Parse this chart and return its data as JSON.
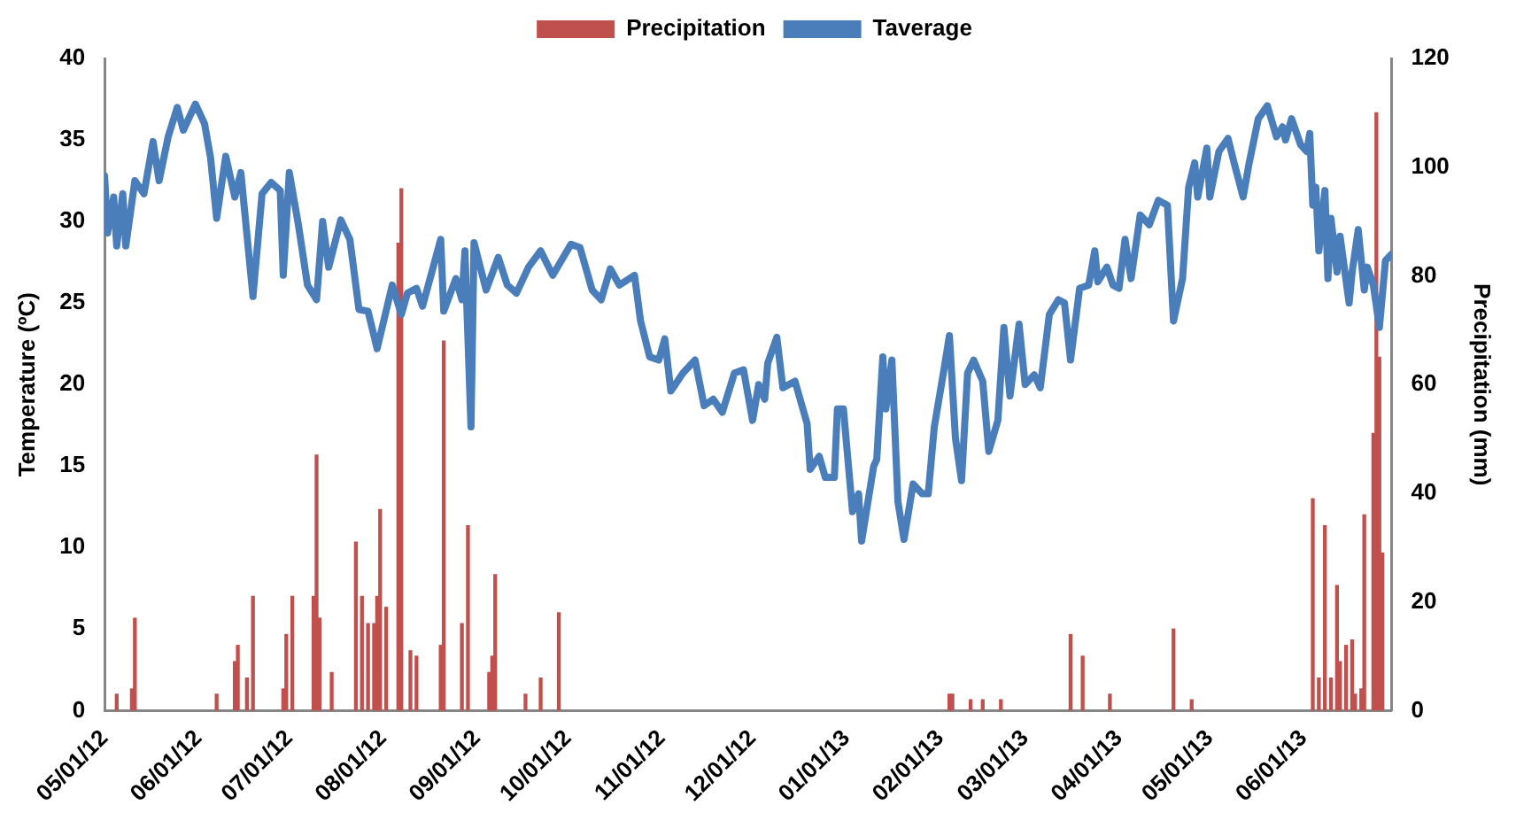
{
  "chart_data": {
    "type": "line",
    "ylabel": "Temperature (ºC)",
    "y2label": "Precipitation (mm)",
    "xlim": [
      "2012-05-01",
      "2013-06-30"
    ],
    "xticks": [
      {
        "value": "2012-05-01",
        "label": "05/01/12"
      },
      {
        "value": "2012-06-01",
        "label": "06/01/12"
      },
      {
        "value": "2012-07-01",
        "label": "07/01/12"
      },
      {
        "value": "2012-08-01",
        "label": "08/01/12"
      },
      {
        "value": "2012-09-01",
        "label": "09/01/12"
      },
      {
        "value": "2012-10-01",
        "label": "10/01/12"
      },
      {
        "value": "2012-11-01",
        "label": "11/01/12"
      },
      {
        "value": "2012-12-01",
        "label": "12/01/12"
      },
      {
        "value": "2013-01-01",
        "label": "01/01/13"
      },
      {
        "value": "2013-02-01",
        "label": "02/01/13"
      },
      {
        "value": "2013-03-01",
        "label": "03/01/13"
      },
      {
        "value": "2013-04-01",
        "label": "04/01/13"
      },
      {
        "value": "2013-05-01",
        "label": "05/01/13"
      },
      {
        "value": "2013-06-01",
        "label": "06/01/13"
      }
    ],
    "ylim": [
      0,
      40
    ],
    "yticks": [
      0,
      5,
      10,
      15,
      20,
      25,
      30,
      35,
      40
    ],
    "y2lim": [
      0,
      120
    ],
    "y2ticks": [
      0,
      20,
      40,
      60,
      80,
      100,
      120
    ],
    "grid": false,
    "legend": "top",
    "series": [
      {
        "name": "Precipitation",
        "type": "bar",
        "axis": "y2",
        "color": "#c0504d",
        "x": [
          "2012-05-05",
          "2012-05-10",
          "2012-05-11",
          "2012-06-07",
          "2012-06-13",
          "2012-06-14",
          "2012-06-17",
          "2012-06-19",
          "2012-06-29",
          "2012-06-30",
          "2012-07-02",
          "2012-07-09",
          "2012-07-10",
          "2012-07-11",
          "2012-07-15",
          "2012-07-23",
          "2012-07-25",
          "2012-07-27",
          "2012-07-29",
          "2012-07-30",
          "2012-07-31",
          "2012-08-02",
          "2012-08-06",
          "2012-08-07",
          "2012-08-10",
          "2012-08-12",
          "2012-08-20",
          "2012-08-21",
          "2012-08-27",
          "2012-08-29",
          "2012-09-05",
          "2012-09-06",
          "2012-09-07",
          "2012-09-17",
          "2012-09-22",
          "2012-09-28",
          "2013-02-04",
          "2013-02-05",
          "2013-02-11",
          "2013-02-15",
          "2013-02-21",
          "2013-03-16",
          "2013-03-20",
          "2013-03-29",
          "2013-04-19",
          "2013-04-25",
          "2013-06-04",
          "2013-06-06",
          "2013-06-08",
          "2013-06-10",
          "2013-06-12",
          "2013-06-13",
          "2013-06-15",
          "2013-06-17",
          "2013-06-18",
          "2013-06-20",
          "2013-06-21",
          "2013-06-24",
          "2013-06-25",
          "2013-06-26",
          "2013-06-27"
        ],
        "values": [
          3,
          4,
          17,
          3,
          9,
          12,
          6,
          21,
          4,
          14,
          21,
          21,
          47,
          17,
          7,
          31,
          21,
          16,
          16,
          21,
          37,
          19,
          86,
          96,
          11,
          10,
          12,
          68,
          16,
          34,
          7,
          10,
          25,
          3,
          6,
          18,
          3,
          3,
          2,
          2,
          2,
          14,
          10,
          3,
          15,
          2,
          39,
          6,
          34,
          6,
          23,
          9,
          12,
          13,
          3,
          4,
          36,
          51,
          110,
          65,
          29
        ]
      },
      {
        "name": "Taverage",
        "axis": "y",
        "color": "#4a7ebb",
        "x": [
          "2012-05-01",
          "2012-05-02",
          "2012-05-04",
          "2012-05-05",
          "2012-05-07",
          "2012-05-08",
          "2012-05-11",
          "2012-05-14",
          "2012-05-17",
          "2012-05-19",
          "2012-05-22",
          "2012-05-25",
          "2012-05-27",
          "2012-05-31",
          "2012-06-03",
          "2012-06-05",
          "2012-06-07",
          "2012-06-10",
          "2012-06-13",
          "2012-06-15",
          "2012-06-19",
          "2012-06-22",
          "2012-06-25",
          "2012-06-28",
          "2012-06-29",
          "2012-07-01",
          "2012-07-04",
          "2012-07-07",
          "2012-07-10",
          "2012-07-12",
          "2012-07-14",
          "2012-07-18",
          "2012-07-21",
          "2012-07-24",
          "2012-07-27",
          "2012-07-30",
          "2012-08-04",
          "2012-08-07",
          "2012-08-09",
          "2012-08-12",
          "2012-08-14",
          "2012-08-20",
          "2012-08-21",
          "2012-08-25",
          "2012-08-27",
          "2012-08-28",
          "2012-08-30",
          "2012-08-31",
          "2012-09-04",
          "2012-09-08",
          "2012-09-11",
          "2012-09-14",
          "2012-09-18",
          "2012-09-22",
          "2012-09-26",
          "2012-10-02",
          "2012-10-05",
          "2012-10-09",
          "2012-10-12",
          "2012-10-15",
          "2012-10-18",
          "2012-10-23",
          "2012-10-25",
          "2012-10-28",
          "2012-10-31",
          "2012-11-02",
          "2012-11-04",
          "2012-11-08",
          "2012-11-12",
          "2012-11-15",
          "2012-11-18",
          "2012-11-21",
          "2012-11-25",
          "2012-11-28",
          "2012-12-01",
          "2012-12-03",
          "2012-12-05",
          "2012-12-06",
          "2012-12-09",
          "2012-12-11",
          "2012-12-15",
          "2012-12-19",
          "2012-12-20",
          "2012-12-23",
          "2012-12-25",
          "2012-12-28",
          "2012-12-29",
          "2012-12-31",
          "2013-01-03",
          "2013-01-05",
          "2013-01-06",
          "2013-01-10",
          "2013-01-11",
          "2013-01-13",
          "2013-01-14",
          "2013-01-16",
          "2013-01-18",
          "2013-01-20",
          "2013-01-23",
          "2013-01-26",
          "2013-01-28",
          "2013-01-30",
          "2013-02-02",
          "2013-02-04",
          "2013-02-06",
          "2013-02-08",
          "2013-02-10",
          "2013-02-12",
          "2013-02-15",
          "2013-02-17",
          "2013-02-20",
          "2013-02-22",
          "2013-02-24",
          "2013-02-27",
          "2013-03-01",
          "2013-03-04",
          "2013-03-06",
          "2013-03-09",
          "2013-03-12",
          "2013-03-14",
          "2013-03-16",
          "2013-03-19",
          "2013-03-22",
          "2013-03-24",
          "2013-03-25",
          "2013-03-28",
          "2013-03-30",
          "2013-04-01",
          "2013-04-03",
          "2013-04-05",
          "2013-04-08",
          "2013-04-11",
          "2013-04-14",
          "2013-04-17",
          "2013-04-19",
          "2013-04-22",
          "2013-04-24",
          "2013-04-26",
          "2013-04-27",
          "2013-04-30",
          "2013-05-01",
          "2013-05-04",
          "2013-05-07",
          "2013-05-09",
          "2013-05-12",
          "2013-05-14",
          "2013-05-17",
          "2013-05-20",
          "2013-05-23",
          "2013-05-25",
          "2013-05-26",
          "2013-05-28",
          "2013-05-31",
          "2013-06-02",
          "2013-06-03",
          "2013-06-04",
          "2013-06-05",
          "2013-06-06",
          "2013-06-08",
          "2013-06-09",
          "2013-06-10",
          "2013-06-12",
          "2013-06-13",
          "2013-06-16",
          "2013-06-17",
          "2013-06-19",
          "2013-06-21",
          "2013-06-22",
          "2013-06-24",
          "2013-06-26",
          "2013-06-28",
          "2013-06-30"
        ],
        "values": [
          32.8,
          29.3,
          31.5,
          28.5,
          31.7,
          28.5,
          32.5,
          31.7,
          34.9,
          32.5,
          35.2,
          37.0,
          35.6,
          37.2,
          36.0,
          33.9,
          30.2,
          34.0,
          31.5,
          33.0,
          25.4,
          31.7,
          32.4,
          31.9,
          26.7,
          33.0,
          29.8,
          26.1,
          25.2,
          30.0,
          27.2,
          30.1,
          28.9,
          24.6,
          24.5,
          22.2,
          26.1,
          24.3,
          25.6,
          25.9,
          24.8,
          28.9,
          24.5,
          26.5,
          25.2,
          28.2,
          17.4,
          28.7,
          25.8,
          27.8,
          26.1,
          25.6,
          27.2,
          28.2,
          26.7,
          28.6,
          28.4,
          25.8,
          25.2,
          27.1,
          26.1,
          26.7,
          23.9,
          21.7,
          21.5,
          22.8,
          19.6,
          20.7,
          21.5,
          18.7,
          19.1,
          18.3,
          20.7,
          20.9,
          17.8,
          20.0,
          19.1,
          21.3,
          22.9,
          19.8,
          20.2,
          17.6,
          14.8,
          15.6,
          14.3,
          14.3,
          18.5,
          18.5,
          12.2,
          13.3,
          10.4,
          15.0,
          15.4,
          21.7,
          18.5,
          21.5,
          12.8,
          10.5,
          13.9,
          13.3,
          13.3,
          17.4,
          20.7,
          23.0,
          16.7,
          14.1,
          20.7,
          21.5,
          20.2,
          15.9,
          17.8,
          23.5,
          19.3,
          23.7,
          20.0,
          20.6,
          19.8,
          24.3,
          25.2,
          25.0,
          21.5,
          25.9,
          26.1,
          28.2,
          26.3,
          27.2,
          26.1,
          25.9,
          28.9,
          26.5,
          30.4,
          29.8,
          31.3,
          31.0,
          23.9,
          26.5,
          32.1,
          33.6,
          31.5,
          34.5,
          31.5,
          34.3,
          35.1,
          33.6,
          31.5,
          33.6,
          36.3,
          37.1,
          35.2,
          35.8,
          35.0,
          36.3,
          34.7,
          34.3,
          35.4,
          31.0,
          32.1,
          28.2,
          31.9,
          26.5,
          30.2,
          26.9,
          29.1,
          25.0,
          26.9,
          29.5,
          25.8,
          27.2,
          26.1,
          23.5,
          27.6,
          28.0
        ]
      }
    ]
  }
}
